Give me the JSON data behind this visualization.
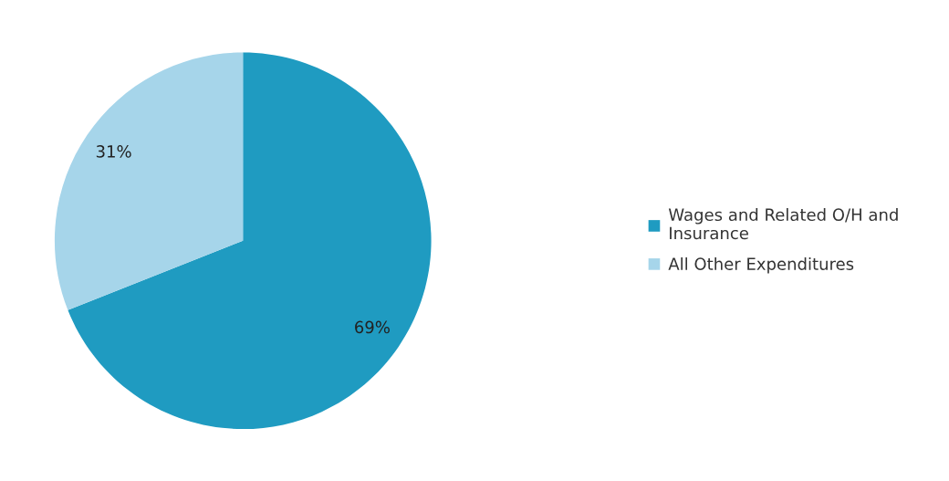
{
  "chart_data": {
    "type": "pie",
    "categories": [
      "Wages and Related O/H and Insurance",
      "All Other Expenditures"
    ],
    "values": [
      69,
      31
    ],
    "colors": [
      "#1f9bc1",
      "#a6d5ea"
    ],
    "value_labels": [
      "69%",
      "31%"
    ],
    "legend": "right"
  }
}
